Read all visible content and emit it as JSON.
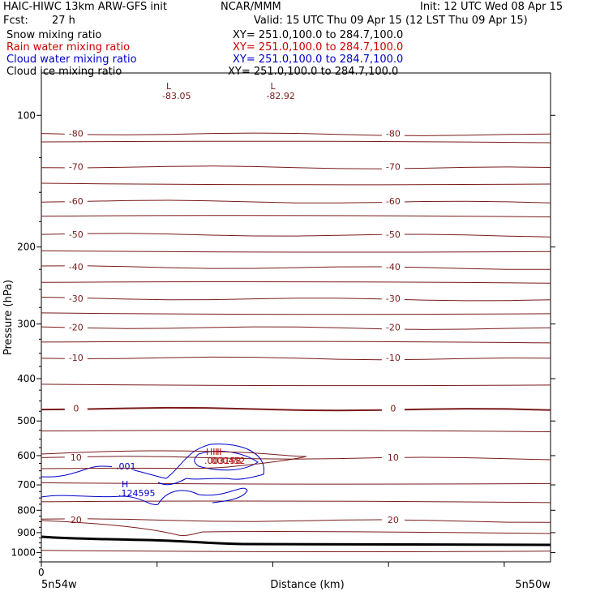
{
  "header": {
    "model": "HAIC-HIWC 13km ARW-GFS init",
    "org": "NCAR/MMM",
    "init": "Init: 12 UTC Wed 08 Apr 15",
    "fcst_label": "Fcst:",
    "fcst_value": "27 h",
    "valid": "Valid: 15 UTC Thu 09 Apr 15 (12 LST Thu 09 Apr 15)"
  },
  "fields": [
    {
      "name": "Snow mixing ratio",
      "xy": "XY= 251.0,100.0 to 284.7,100.0",
      "color": "#000000"
    },
    {
      "name": "Rain water mixing ratio",
      "xy": "XY= 251.0,100.0 to 284.7,100.0",
      "color": "#cc0000"
    },
    {
      "name": "Cloud water mixing ratio",
      "xy": "XY= 251.0,100.0 to 284.7,100.0",
      "color": "#0000cc"
    },
    {
      "name": "Cloud ice mixing ratio",
      "xy": "XY= 251.0,100.0 to 284.7,100.0",
      "color": "#000000"
    }
  ],
  "chart_data": {
    "type": "line",
    "xlabel": "Distance (km)",
    "ylabel": "Pressure (hPa)",
    "y_log_scale": true,
    "ylim": [
      1050,
      80
    ],
    "xlim": [
      0,
      220
    ],
    "yticks": [
      100,
      200,
      300,
      400,
      500,
      600,
      700,
      800,
      900,
      1000
    ],
    "x_left_label": "0",
    "endpoint_labels": {
      "left": "5n54w",
      "right": "5n50w"
    },
    "temperature_contours": {
      "color": "#7a1a1a",
      "units": "deg C",
      "levels": [
        {
          "value": -80,
          "p": 110,
          "label": "-80"
        },
        {
          "value": -70,
          "p": 131,
          "label": "-70"
        },
        {
          "value": -60,
          "p": 157,
          "label": "-60"
        },
        {
          "value": -50,
          "p": 187,
          "label": "-50"
        },
        {
          "value": -40,
          "p": 222,
          "label": "-40"
        },
        {
          "value": -30,
          "p": 262,
          "label": "-30"
        },
        {
          "value": -20,
          "p": 305,
          "label": "-20"
        },
        {
          "value": -10,
          "p": 358,
          "label": "-10"
        },
        {
          "value": 0,
          "p": 468,
          "label": "0",
          "bold": true
        },
        {
          "value": 10,
          "p": 605,
          "label": "10"
        },
        {
          "value": 20,
          "p": 841,
          "label": "20"
        }
      ]
    },
    "minima": [
      {
        "symbol": "L",
        "value": "-83.05"
      },
      {
        "symbol": "L",
        "value": "-82.92"
      }
    ],
    "cloud_water": {
      "color": "#0000cc",
      "contour_label": ".001",
      "max_symbol": "H",
      "max_value": ".124595"
    },
    "rain_water": {
      "color": "#cc0000",
      "max_symbol": "H",
      "max_value": ".000452",
      "overlap_label": "HH",
      "overlap_value": ".003158"
    },
    "terrain_pressure": 1000
  }
}
